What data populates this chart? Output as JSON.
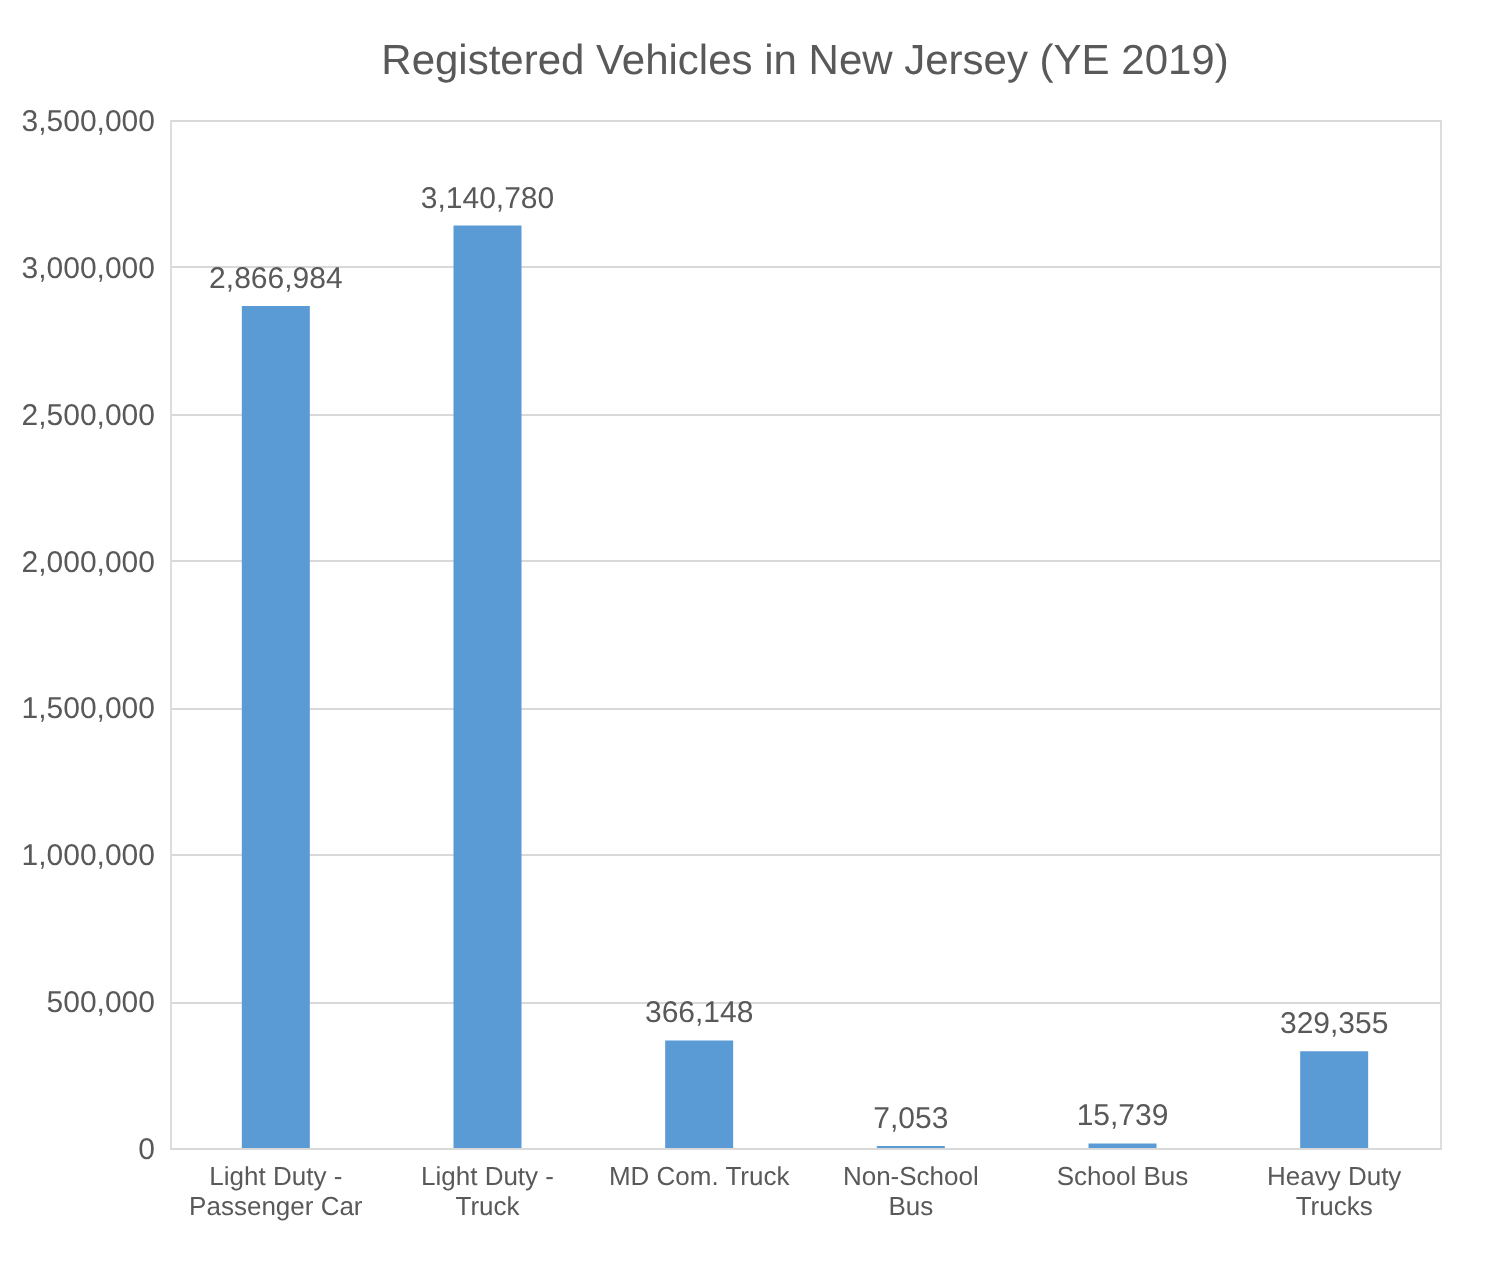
{
  "chart_data": {
    "type": "bar",
    "title": "Registered Vehicles in New Jersey (YE 2019)",
    "categories": [
      "Light Duty - Passenger Car",
      "Light Duty - Truck",
      "MD Com. Truck",
      "Non-School Bus",
      "School Bus",
      "Heavy Duty Trucks"
    ],
    "values": [
      2866984,
      3140780,
      366148,
      7053,
      15739,
      329355
    ],
    "color": "#5b9bd5",
    "ylim": [
      0,
      3500000
    ],
    "yticks": [
      {
        "value": 0,
        "label": "0"
      },
      {
        "value": 500000,
        "label": "500,000"
      },
      {
        "value": 1000000,
        "label": "1,000,000"
      },
      {
        "value": 1500000,
        "label": "1,500,000"
      },
      {
        "value": 2000000,
        "label": "2,000,000"
      },
      {
        "value": 2500000,
        "label": "2,500,000"
      },
      {
        "value": 3000000,
        "label": "3,000,000"
      },
      {
        "value": 3500000,
        "label": "3,500,000"
      }
    ],
    "value_labels": [
      "2,866,984",
      "3,140,780",
      "366,148",
      "7,053",
      "15,739",
      "329,355"
    ],
    "grid": "y"
  }
}
